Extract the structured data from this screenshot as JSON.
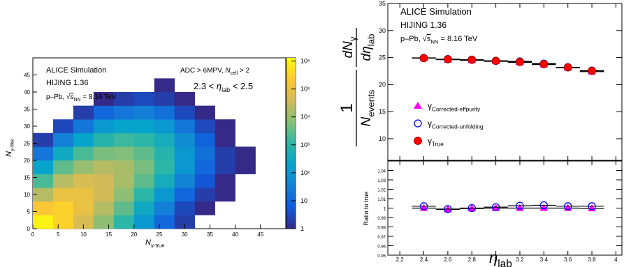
{
  "chart_data": [
    {
      "type": "heatmap",
      "xlabel": [
        {
          "text": "N",
          "style": "italic"
        },
        {
          "text": "γ-true",
          "style": "sub"
        }
      ],
      "ylabel": [
        {
          "text": "N",
          "style": "italic"
        },
        {
          "text": "γ-like",
          "style": "sub"
        }
      ],
      "annotations": [
        [
          {
            "text": "ALICE Simulation"
          }
        ],
        [
          {
            "text": "HIJING 1.36"
          }
        ],
        [
          {
            "text": "p–Pb, √"
          },
          {
            "text": "s",
            "style": "overline"
          },
          {
            "text": "NN",
            "style": "sub"
          },
          {
            "text": " =  8.16 TeV"
          }
        ],
        [
          {
            "text": "ADC > 6MPV, "
          },
          {
            "text": "N",
            "style": "italic"
          },
          {
            "text": "cell",
            "style": "sub"
          },
          {
            "text": " > 2"
          }
        ],
        [
          {
            "text": "2.3 < "
          },
          {
            "text": "η",
            "style": "italic"
          },
          {
            "text": "lab",
            "style": "sub"
          },
          {
            "text": " < 2.5"
          }
        ]
      ],
      "xlim": [
        0,
        50
      ],
      "ylim": [
        0,
        50
      ],
      "xticks": [
        0,
        5,
        10,
        15,
        20,
        25,
        30,
        35,
        40,
        45
      ],
      "yticks": [
        0,
        5,
        10,
        15,
        20,
        25,
        30,
        35,
        40,
        45
      ],
      "xbins": [
        0,
        4,
        8,
        12,
        16,
        20,
        24,
        28,
        32,
        36,
        40,
        44,
        48
      ],
      "ybins": [
        0,
        4,
        8,
        12,
        16,
        20,
        24,
        28,
        32,
        36,
        40,
        44,
        48
      ],
      "values": [
        [
          1000000,
          300000,
          50000,
          8000,
          1000,
          100,
          10,
          2,
          null,
          null,
          null,
          null
        ],
        [
          200000,
          300000,
          100000,
          20000,
          3000,
          300,
          30,
          3,
          1,
          null,
          null,
          null
        ],
        [
          20000,
          100000,
          100000,
          40000,
          8000,
          1000,
          100,
          10,
          2,
          1,
          null,
          null
        ],
        [
          2000,
          20000,
          50000,
          40000,
          15000,
          3000,
          400,
          40,
          5,
          1,
          null,
          null
        ],
        [
          200,
          3000,
          10000,
          20000,
          15000,
          5000,
          1000,
          100,
          10,
          2,
          1,
          null
        ],
        [
          20,
          300,
          2000,
          5000,
          6000,
          3000,
          800,
          100,
          15,
          2,
          1,
          null
        ],
        [
          2,
          30,
          200,
          800,
          1500,
          1000,
          400,
          60,
          8,
          1,
          null,
          null
        ],
        [
          null,
          3,
          20,
          100,
          200,
          200,
          100,
          20,
          3,
          1,
          null,
          null
        ],
        [
          null,
          null,
          2,
          10,
          20,
          30,
          15,
          3,
          1,
          null,
          null,
          null
        ],
        [
          null,
          null,
          null,
          1,
          2,
          3,
          2,
          1,
          null,
          null,
          null,
          null
        ],
        [
          null,
          null,
          null,
          null,
          null,
          null,
          1,
          null,
          null,
          null,
          null,
          null
        ],
        [
          null,
          null,
          null,
          null,
          null,
          null,
          null,
          null,
          null,
          null,
          null,
          null
        ]
      ],
      "zlim": [
        1,
        1300000
      ],
      "zscale": "log",
      "zticks": [
        1,
        10,
        {
          "value": 100,
          "label": "10²"
        },
        {
          "value": 1000,
          "label": "10³"
        },
        {
          "value": 10000,
          "label": "10⁴"
        },
        {
          "value": 100000,
          "label": "10⁵"
        },
        {
          "value": 1000000,
          "label": "10⁶"
        }
      ],
      "colormap": [
        "#352a87",
        "#0f5cdd",
        "#1481d6",
        "#06a4ca",
        "#2eb7a4",
        "#87bf77",
        "#d1bb59",
        "#fec832",
        "#f9fb0e"
      ]
    },
    {
      "type": "scatter",
      "annotations": [
        [
          {
            "text": "ALICE Simulation"
          }
        ],
        [
          {
            "text": "HIJING 1.36"
          }
        ],
        [
          {
            "text": "p–Pb, √"
          },
          {
            "text": "s",
            "style": "overline"
          },
          {
            "text": "NN",
            "style": "sub"
          },
          {
            "text": " = 8.16 TeV"
          }
        ]
      ],
      "ylabel": [
        {
          "num": [
            {
              "text": "1"
            }
          ],
          "den": [
            {
              "text": "N",
              "style": "italic"
            },
            {
              "text": "events",
              "style": "sub"
            }
          ]
        },
        {
          "num": [
            {
              "text": "dN",
              "style": "italic"
            },
            {
              "text": "γ",
              "style": "sub"
            }
          ],
          "den": [
            {
              "text": "dη",
              "style": "italic"
            },
            {
              "text": "lab",
              "style": "sub"
            }
          ]
        }
      ],
      "xlim": [
        2.1,
        4.05
      ],
      "ylim": [
        6,
        35
      ],
      "xticks": [
        2.2,
        2.4,
        2.6,
        2.8,
        3,
        3.2,
        3.4,
        3.6,
        3.8,
        4
      ],
      "yticks": [
        10,
        15,
        20,
        25,
        30,
        35
      ],
      "x": [
        2.4,
        2.6,
        2.8,
        3.0,
        3.2,
        3.4,
        3.6,
        3.8
      ],
      "xerr": 0.1,
      "series": [
        {
          "name": [
            {
              "text": "γ"
            },
            {
              "text": "Corrected-effpurity",
              "style": "sub"
            }
          ],
          "marker": "triangle",
          "color": "#ff00ff",
          "values": [
            24.9,
            24.6,
            24.5,
            24.3,
            24.1,
            23.7,
            23.1,
            22.4
          ]
        },
        {
          "name": [
            {
              "text": "γ"
            },
            {
              "text": "Corrected-unfolding",
              "style": "sub"
            }
          ],
          "marker": "open-circle",
          "color": "#0000ff",
          "values": [
            24.95,
            24.7,
            24.6,
            24.4,
            24.3,
            23.9,
            23.2,
            22.6
          ]
        },
        {
          "name": [
            {
              "text": "γ"
            },
            {
              "text": "True",
              "style": "sub"
            }
          ],
          "marker": "circle",
          "color": "#ff0000",
          "values": [
            24.9,
            24.7,
            24.6,
            24.4,
            24.2,
            23.8,
            23.2,
            22.55
          ]
        }
      ]
    },
    {
      "type": "scatter",
      "ylabel": "Ratio to true",
      "xlabel": [
        {
          "text": "η",
          "style": "italic"
        },
        {
          "text": "lab",
          "style": "sub"
        }
      ],
      "xlim": [
        2.1,
        4.05
      ],
      "ylim": [
        0.95,
        1.05
      ],
      "xticks": [
        2.2,
        2.4,
        2.6,
        2.8,
        3,
        3.2,
        3.4,
        3.6,
        3.8,
        4
      ],
      "yticks": [
        0.95,
        0.96,
        0.97,
        0.98,
        0.99,
        1,
        1.01,
        1.02,
        1.03,
        1.04
      ],
      "x": [
        2.4,
        2.6,
        2.8,
        3.0,
        3.2,
        3.4,
        3.6,
        3.8
      ],
      "xerr": 0.1,
      "series": [
        {
          "marker": "triangle",
          "color": "#ff00ff",
          "values": [
            1.0,
            0.9985,
            0.9995,
            1.0,
            1.0,
            1.0,
            1.0,
            0.9995
          ]
        },
        {
          "marker": "open-circle",
          "color": "#0000ff",
          "values": [
            1.002,
            0.999,
            1.0,
            1.001,
            1.0025,
            1.003,
            1.002,
            1.002
          ]
        }
      ]
    }
  ]
}
